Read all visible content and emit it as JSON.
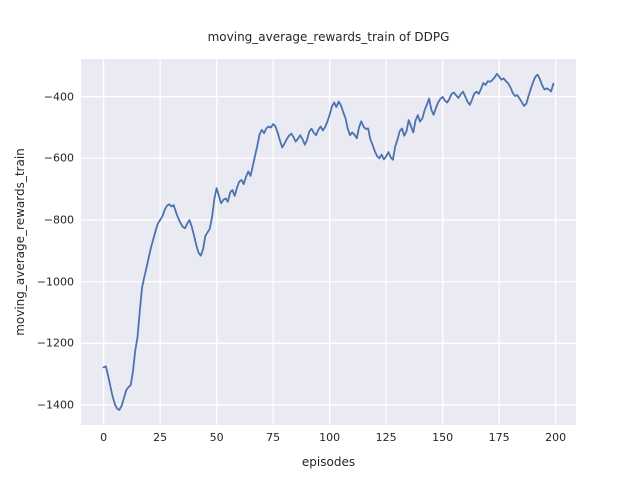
{
  "chart_data": {
    "type": "line",
    "title": "moving_average_rewards_train of DDPG",
    "xlabel": "episodes",
    "ylabel": "moving_average_rewards_train",
    "x_ticks": [
      0,
      25,
      50,
      75,
      100,
      125,
      150,
      175,
      200
    ],
    "y_ticks": [
      -400,
      -600,
      -800,
      -1000,
      -1200,
      -1400
    ],
    "xlim": [
      -10,
      209
    ],
    "ylim": [
      -1465,
      -278
    ],
    "grid": true,
    "legend": false,
    "series": [
      {
        "name": "moving_average_rewards_train",
        "x_start": 0,
        "x_step": 1,
        "y": [
          -1278,
          -1275,
          -1305,
          -1340,
          -1372,
          -1398,
          -1412,
          -1416,
          -1402,
          -1378,
          -1352,
          -1342,
          -1336,
          -1290,
          -1225,
          -1180,
          -1095,
          -1020,
          -985,
          -955,
          -920,
          -888,
          -862,
          -835,
          -812,
          -800,
          -788,
          -768,
          -754,
          -749,
          -756,
          -752,
          -774,
          -794,
          -810,
          -822,
          -827,
          -812,
          -800,
          -822,
          -850,
          -882,
          -906,
          -916,
          -895,
          -852,
          -840,
          -828,
          -790,
          -730,
          -697,
          -722,
          -746,
          -735,
          -730,
          -741,
          -710,
          -703,
          -722,
          -695,
          -676,
          -670,
          -684,
          -660,
          -643,
          -657,
          -625,
          -592,
          -560,
          -522,
          -508,
          -519,
          -503,
          -497,
          -500,
          -489,
          -496,
          -516,
          -542,
          -565,
          -553,
          -538,
          -527,
          -520,
          -531,
          -546,
          -536,
          -525,
          -538,
          -556,
          -541,
          -513,
          -504,
          -517,
          -525,
          -508,
          -497,
          -510,
          -499,
          -481,
          -460,
          -432,
          -419,
          -434,
          -416,
          -428,
          -450,
          -470,
          -503,
          -525,
          -516,
          -524,
          -535,
          -500,
          -480,
          -497,
          -505,
          -503,
          -538,
          -557,
          -577,
          -593,
          -600,
          -588,
          -604,
          -594,
          -580,
          -597,
          -605,
          -562,
          -540,
          -512,
          -503,
          -527,
          -512,
          -476,
          -496,
          -516,
          -478,
          -460,
          -481,
          -471,
          -444,
          -427,
          -406,
          -442,
          -459,
          -437,
          -419,
          -407,
          -401,
          -413,
          -419,
          -407,
          -391,
          -387,
          -396,
          -404,
          -392,
          -384,
          -399,
          -416,
          -427,
          -410,
          -390,
          -384,
          -391,
          -374,
          -356,
          -362,
          -350,
          -352,
          -346,
          -338,
          -326,
          -335,
          -345,
          -341,
          -350,
          -357,
          -370,
          -388,
          -398,
          -395,
          -406,
          -418,
          -430,
          -423,
          -398,
          -375,
          -353,
          -336,
          -329,
          -343,
          -363,
          -377,
          -373,
          -377,
          -383,
          -358
        ]
      }
    ],
    "style": {
      "fig_bg": "#FFFFFF",
      "axes_bg": "#EAEAF2",
      "grid_color": "#FFFFFF",
      "line_color": "#4C72B0",
      "text_color": "#262626"
    }
  }
}
